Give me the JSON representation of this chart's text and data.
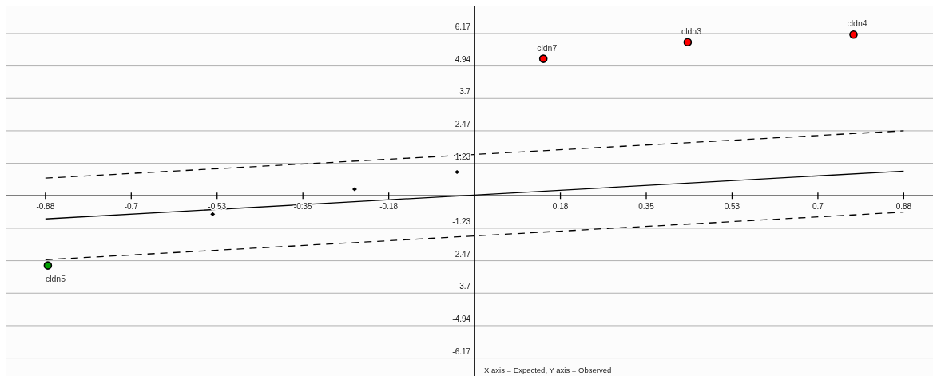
{
  "chart_data": {
    "type": "scatter",
    "annotations": [
      {
        "text": "cldn7",
        "x": 0.141,
        "y": 5.21
      },
      {
        "text": "cldn3",
        "x": 0.437,
        "y": 5.84
      },
      {
        "text": "cldn4",
        "x": 0.777,
        "y": 6.13
      },
      {
        "text": "cldn5",
        "x": -0.875,
        "y": -2.65
      },
      "X axis = Expected, Y axis = Observed"
    ],
    "series": [
      {
        "type": "scatter",
        "color": "#ff0000",
        "marker": "circle",
        "x": [
          0.141,
          0.437,
          0.777
        ],
        "values": [
          5.21,
          5.84,
          6.13
        ]
      },
      {
        "type": "scatter",
        "color": "#00a000",
        "marker": "circle",
        "x": [
          -0.875
        ],
        "values": [
          -2.65
        ]
      },
      {
        "type": "scatter",
        "color": "#000000",
        "marker": "diamond",
        "x": [
          -0.537,
          -0.246,
          -0.036
        ],
        "values": [
          -0.7,
          0.25,
          0.9
        ]
      },
      {
        "type": "line",
        "color": "#000000",
        "line_style": "solid",
        "x": [
          -0.88,
          0.88
        ],
        "values": [
          -0.88,
          0.94
        ]
      },
      {
        "type": "line",
        "color": "#000000",
        "line_style": "dashed",
        "x": [
          -0.88,
          0.88
        ],
        "values": [
          0.67,
          2.47
        ]
      },
      {
        "type": "line",
        "color": "#000000",
        "line_style": "dashed",
        "x": [
          -0.88,
          0.88
        ],
        "values": [
          -2.43,
          -0.62
        ]
      }
    ],
    "xlim": [
      -0.96,
      0.94
    ],
    "ylim": [
      -6.85,
      7.2
    ],
    "xticks": [
      {
        "value": -0.88,
        "label": "-0.88"
      },
      {
        "value": -0.704,
        "label": "-0.7"
      },
      {
        "value": -0.528,
        "label": "-0.53"
      },
      {
        "value": -0.352,
        "label": "-0.35"
      },
      {
        "value": -0.176,
        "label": "-0.18"
      },
      {
        "value": 0.176,
        "label": "0.18"
      },
      {
        "value": 0.352,
        "label": "0.35"
      },
      {
        "value": 0.528,
        "label": "0.53"
      },
      {
        "value": 0.704,
        "label": "0.7"
      },
      {
        "value": 0.88,
        "label": "0.88"
      }
    ],
    "yticks": [
      {
        "value": -6.17,
        "label": "-6.17"
      },
      {
        "value": -4.936,
        "label": "-4.94"
      },
      {
        "value": -3.702,
        "label": "-3.7"
      },
      {
        "value": -2.468,
        "label": "-2.47"
      },
      {
        "value": -1.234,
        "label": "-1.23"
      },
      {
        "value": 1.234,
        "label": "1.23"
      },
      {
        "value": 2.468,
        "label": "2.47"
      },
      {
        "value": 3.702,
        "label": "3.7"
      },
      {
        "value": 4.936,
        "label": "4.94"
      },
      {
        "value": 6.17,
        "label": "6.17"
      }
    ],
    "grid": "y"
  }
}
